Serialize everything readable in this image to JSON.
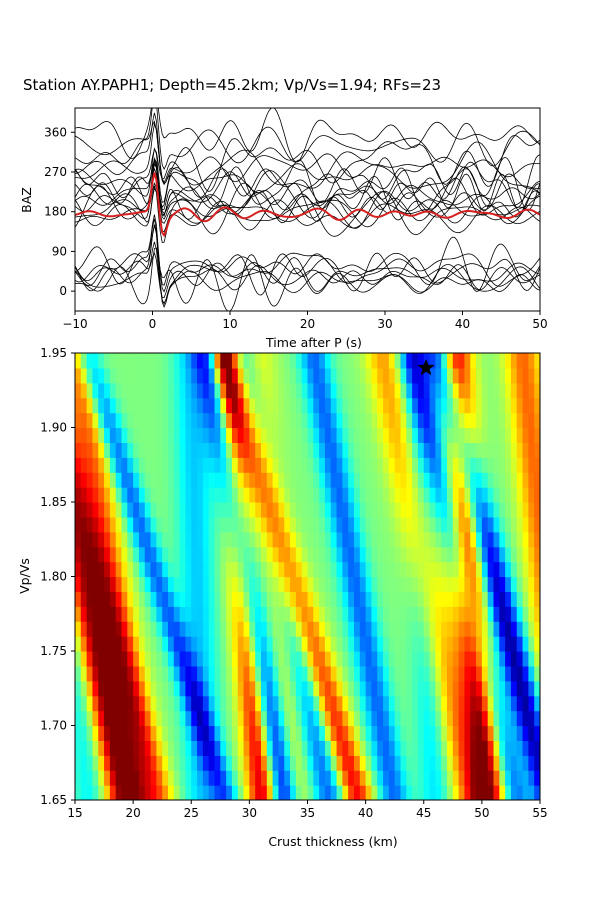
{
  "figure": {
    "title": "Station AY.PAPH1; Depth=45.2km; Vp/Vs=1.94; RFs=23"
  },
  "chart_data": [
    {
      "type": "line",
      "panel": "receiver-functions",
      "xlabel": "Time after P (s)",
      "ylabel": "BAZ",
      "xlim": [
        -10,
        50
      ],
      "ylim": [
        -45,
        415
      ],
      "xticks": [
        -10,
        0,
        10,
        20,
        30,
        40,
        50
      ],
      "xtick_labels": [
        "−10",
        "0",
        "10",
        "20",
        "30",
        "40",
        "50"
      ],
      "yticks": [
        0,
        90,
        180,
        270,
        360
      ],
      "yticks_labels": [
        "0",
        "90",
        "180",
        "270",
        "360"
      ],
      "trace_count": 23,
      "trace_baz": [
        18,
        25,
        32,
        40,
        48,
        55,
        60,
        170,
        175,
        182,
        188,
        195,
        205,
        215,
        225,
        235,
        245,
        255,
        270,
        285,
        300,
        330,
        355
      ],
      "trace_color": "#000000",
      "stack": {
        "baz": 175,
        "color": "#d62020",
        "peak_time": 0.3
      },
      "grid": false
    },
    {
      "type": "heatmap",
      "panel": "h-k-stack",
      "xlabel": "Crust thickness (km)",
      "ylabel": "Vp/Vs",
      "xlim": [
        15,
        55
      ],
      "ylim": [
        1.65,
        1.95
      ],
      "xticks": [
        15,
        20,
        25,
        30,
        35,
        40,
        45,
        50,
        55
      ],
      "xtick_labels": [
        "15",
        "20",
        "25",
        "30",
        "35",
        "40",
        "45",
        "50",
        "55"
      ],
      "yticks": [
        1.65,
        1.7,
        1.75,
        1.8,
        1.85,
        1.9,
        1.95
      ],
      "ytick_labels": [
        "1.65",
        "1.70",
        "1.75",
        "1.80",
        "1.85",
        "1.90",
        "1.95"
      ],
      "colormap": "jet",
      "best_fit": {
        "H": 45.2,
        "k": 1.94,
        "marker": "star"
      },
      "bands": [
        {
          "H_at_1.65": 21.0,
          "H_at_1.95": 6.0,
          "sign": 0.55,
          "width": 1.6
        },
        {
          "H_at_1.65": 19.3,
          "H_at_1.95": 7.7,
          "sign": 0.95,
          "width": 1.5
        },
        {
          "H_at_1.65": 22.5,
          "H_at_1.95": 10.5,
          "sign": 0.35,
          "width": 1.3
        },
        {
          "H_at_1.65": 26.0,
          "H_at_1.95": 1.0,
          "sign": -0.35,
          "width": 1.6
        },
        {
          "H_at_1.65": 33.0,
          "H_at_1.95": 6.5,
          "sign": -0.95,
          "width": 1.25
        },
        {
          "H_at_1.65": 28.0,
          "H_at_1.95": 12.0,
          "sign": -0.55,
          "width": 1.1
        },
        {
          "H_at_1.65": 31.2,
          "H_at_1.95": 3.5,
          "sign": 0.9,
          "width": 1.3
        },
        {
          "H_at_1.65": 34.0,
          "H_at_1.95": 3.5,
          "sign": 0.3,
          "width": 1.6
        },
        {
          "H_at_1.65": 37.0,
          "H_at_1.95": 8.0,
          "sign": -0.6,
          "width": 1.5
        },
        {
          "H_at_1.65": 39.3,
          "H_at_1.95": 11.5,
          "sign": 0.8,
          "width": 1.4
        },
        {
          "H_at_1.65": 42.5,
          "H_at_1.95": 7.0,
          "sign": -0.55,
          "width": 1.3
        },
        {
          "H_at_1.65": 50.5,
          "H_at_1.95": 3.0,
          "sign": 1.0,
          "width": 1.5
        },
        {
          "H_at_1.65": 49.0,
          "H_at_1.95": 7.5,
          "sign": 0.45,
          "width": 1.6
        },
        {
          "H_at_1.65": 46.0,
          "H_at_1.95": 2.0,
          "sign": -0.3,
          "width": 1.4
        },
        {
          "H_at_1.65": 55.8,
          "H_at_1.95": 9.5,
          "sign": -0.95,
          "width": 1.3
        },
        {
          "H_at_1.65": 53.0,
          "H_at_1.95": 9.0,
          "sign": -0.55,
          "width": 1.2
        },
        {
          "H_at_1.65": 57.5,
          "H_at_1.95": 4.0,
          "sign": 0.55,
          "width": 1.6
        },
        {
          "H_at_1.65": 16.2,
          "H_at_1.95": 3.0,
          "sign": -0.25,
          "width": 1.3
        }
      ]
    }
  ]
}
